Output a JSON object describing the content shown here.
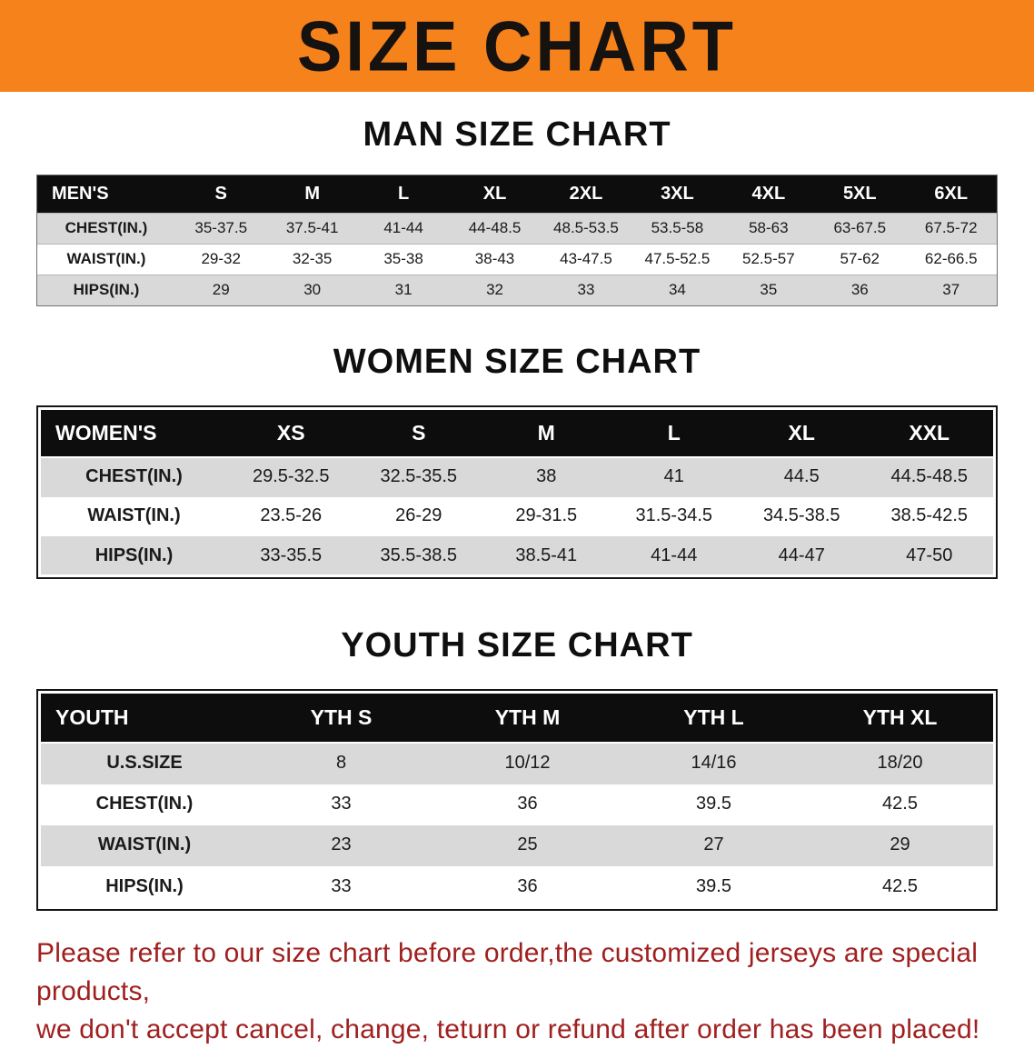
{
  "banner": {
    "title": "SIZE CHART",
    "bg_color": "#f6821c",
    "text_color": "#151210"
  },
  "sections": [
    {
      "heading": "MAN SIZE CHART",
      "table": {
        "header": [
          "MEN'S",
          "S",
          "M",
          "L",
          "XL",
          "2XL",
          "3XL",
          "4XL",
          "5XL",
          "6XL"
        ],
        "rows": [
          [
            "CHEST(IN.)",
            "35-37.5",
            "37.5-41",
            "41-44",
            "44-48.5",
            "48.5-53.5",
            "53.5-58",
            "58-63",
            "63-67.5",
            "67.5-72"
          ],
          [
            "WAIST(IN.)",
            "29-32",
            "32-35",
            "35-38",
            "38-43",
            "43-47.5",
            "47.5-52.5",
            "52.5-57",
            "57-62",
            "62-66.5"
          ],
          [
            "HIPS(IN.)",
            "29",
            "30",
            "31",
            "32",
            "33",
            "34",
            "35",
            "36",
            "37"
          ]
        ]
      }
    },
    {
      "heading": "WOMEN SIZE CHART",
      "table": {
        "header": [
          "WOMEN'S",
          "XS",
          "S",
          "M",
          "L",
          "XL",
          "XXL"
        ],
        "rows": [
          [
            "CHEST(IN.)",
            "29.5-32.5",
            "32.5-35.5",
            "38",
            "41",
            "44.5",
            "44.5-48.5"
          ],
          [
            "WAIST(IN.)",
            "23.5-26",
            "26-29",
            "29-31.5",
            "31.5-34.5",
            "34.5-38.5",
            "38.5-42.5"
          ],
          [
            "HIPS(IN.)",
            "33-35.5",
            "35.5-38.5",
            "38.5-41",
            "41-44",
            "44-47",
            "47-50"
          ]
        ]
      }
    },
    {
      "heading": "YOUTH SIZE CHART",
      "table": {
        "header": [
          "YOUTH",
          "YTH S",
          "YTH M",
          "YTH L",
          "YTH XL"
        ],
        "rows": [
          [
            "U.S.SIZE",
            "8",
            "10/12",
            "14/16",
            "18/20"
          ],
          [
            "CHEST(IN.)",
            "33",
            "36",
            "39.5",
            "42.5"
          ],
          [
            "WAIST(IN.)",
            "23",
            "25",
            "27",
            "29"
          ],
          [
            "HIPS(IN.)",
            "33",
            "36",
            "39.5",
            "42.5"
          ]
        ]
      }
    }
  ],
  "footer": {
    "line1": "Please refer to our size chart before order,the customized jerseys are special products,",
    "line2": "we don't accept cancel, change, teturn or refund after order has been placed!",
    "text_color": "#a02020"
  }
}
